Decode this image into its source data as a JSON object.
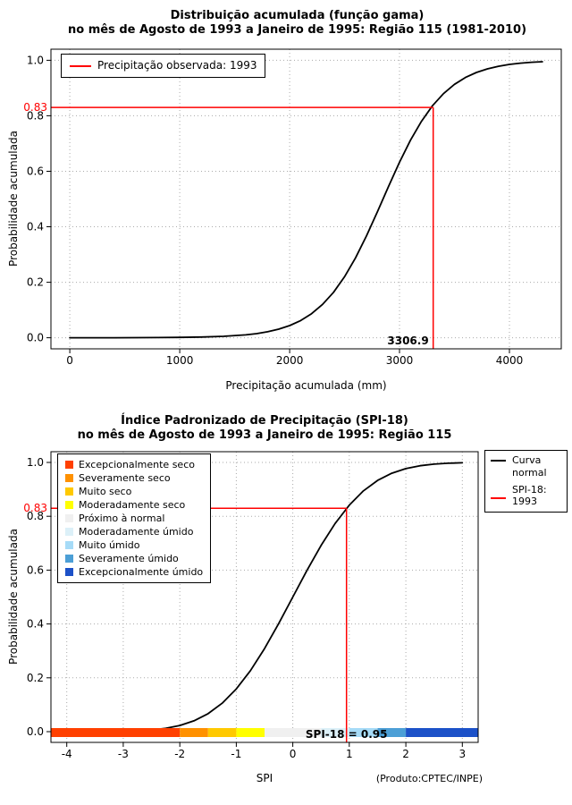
{
  "page": {
    "footer": "(Produto:CPTEC/INPE)"
  },
  "chart_data": [
    {
      "type": "line",
      "title": "Distribuição acumulada (função gama)",
      "subtitle": "no mês de Agosto de 1993 a Janeiro de 1995: Região 115 (1981-2010)",
      "xlabel": "Precipitação acumulada (mm)",
      "ylabel": "Probabilidade acumulada",
      "xlim": [
        0,
        4300
      ],
      "ylim": [
        0,
        1
      ],
      "xticks": [
        0,
        1000,
        2000,
        3000,
        4000
      ],
      "yticks": [
        "0.0",
        "0.2",
        "0.4",
        "0.6",
        "0.8",
        "1.0"
      ],
      "grid": true,
      "legend_position": "top-left",
      "legend": [
        {
          "label": "Precipitação observada: 1993",
          "color": "#FF0000",
          "sample": "line"
        }
      ],
      "series": [
        {
          "name": "Distribuição acumulada (função gama)",
          "color": "#000000",
          "points": [
            [
              0,
              0.0
            ],
            [
              200,
              0.0001
            ],
            [
              400,
              0.0001
            ],
            [
              600,
              0.0003
            ],
            [
              800,
              0.0006
            ],
            [
              1000,
              0.0012
            ],
            [
              1200,
              0.0025
            ],
            [
              1400,
              0.005
            ],
            [
              1600,
              0.0103
            ],
            [
              1700,
              0.0149
            ],
            [
              1800,
              0.0215
            ],
            [
              1900,
              0.0308
            ],
            [
              2000,
              0.0439
            ],
            [
              2100,
              0.062
            ],
            [
              2200,
              0.0868
            ],
            [
              2300,
              0.1201
            ],
            [
              2400,
              0.1639
            ],
            [
              2500,
              0.2197
            ],
            [
              2600,
              0.2879
            ],
            [
              2700,
              0.3674
            ],
            [
              2800,
              0.4549
            ],
            [
              2900,
              0.5451
            ],
            [
              3000,
              0.6326
            ],
            [
              3100,
              0.7121
            ],
            [
              3200,
              0.7803
            ],
            [
              3300,
              0.8361
            ],
            [
              3400,
              0.8799
            ],
            [
              3500,
              0.9132
            ],
            [
              3600,
              0.938
            ],
            [
              3700,
              0.9561
            ],
            [
              3800,
              0.9692
            ],
            [
              3900,
              0.9785
            ],
            [
              4000,
              0.9851
            ],
            [
              4100,
              0.9897
            ],
            [
              4200,
              0.9928
            ],
            [
              4300,
              0.995
            ]
          ]
        }
      ],
      "marker": {
        "x": 3306.9,
        "y": 0.83,
        "x_label": "3306.9",
        "y_label": "0.83",
        "color": "#FF0000"
      }
    },
    {
      "type": "line",
      "title": "Índice Padronizado de Precipitação (SPI-18)",
      "subtitle": "no mês de Agosto de 1993 a Janeiro de 1995: Região 115",
      "xlabel": "SPI",
      "ylabel": "Probabilidade acumulada",
      "xlim": [
        -4,
        3
      ],
      "ylim": [
        0,
        1
      ],
      "xticks": [
        -4,
        -3,
        -2,
        -1,
        0,
        1,
        2,
        3
      ],
      "yticks": [
        "0.0",
        "0.2",
        "0.4",
        "0.6",
        "0.8",
        "1.0"
      ],
      "grid": true,
      "legend_position": "categories top-left, lines top-right",
      "legend": [
        {
          "label": "Curva\nnormal",
          "color": "#000000",
          "sample": "line"
        },
        {
          "label": "SPI-18: 1993",
          "color": "#FF0000",
          "sample": "line"
        }
      ],
      "categories": [
        {
          "label": "Excepcionalmente seco",
          "color": "#FF4000",
          "range": [
            -4,
            -2
          ]
        },
        {
          "label": "Severamente seco",
          "color": "#FF9100",
          "range": [
            -2,
            -1.5
          ]
        },
        {
          "label": "Muito seco",
          "color": "#FFC900",
          "range": [
            -1.5,
            -1
          ]
        },
        {
          "label": "Moderadamente seco",
          "color": "#FFFF00",
          "range": [
            -1,
            -0.5
          ]
        },
        {
          "label": "Próximo à normal",
          "color": "#F0F0F0",
          "range": [
            -0.5,
            0.5
          ]
        },
        {
          "label": "Moderadamente úmido",
          "color": "#DCF0F8",
          "range": [
            0.5,
            1
          ]
        },
        {
          "label": "Muito úmido",
          "color": "#A6DBF7",
          "range": [
            1,
            1.5
          ]
        },
        {
          "label": "Severamente úmido",
          "color": "#4C9FD6",
          "range": [
            1.5,
            2
          ]
        },
        {
          "label": "Excepcionalmente úmido",
          "color": "#1C51C8",
          "range": [
            2,
            3
          ]
        }
      ],
      "series": [
        {
          "name": "Curva normal",
          "color": "#000000",
          "points": [
            [
              -4,
              3e-05
            ],
            [
              -3.75,
              0.0001
            ],
            [
              -3.5,
              0.0002
            ],
            [
              -3.25,
              0.0006
            ],
            [
              -3,
              0.0013
            ],
            [
              -2.75,
              0.003
            ],
            [
              -2.5,
              0.0062
            ],
            [
              -2.25,
              0.0122
            ],
            [
              -2,
              0.0228
            ],
            [
              -1.75,
              0.0401
            ],
            [
              -1.5,
              0.0668
            ],
            [
              -1.25,
              0.1056
            ],
            [
              -1,
              0.1587
            ],
            [
              -0.75,
              0.2266
            ],
            [
              -0.5,
              0.3085
            ],
            [
              -0.25,
              0.4013
            ],
            [
              0,
              0.5
            ],
            [
              0.25,
              0.5987
            ],
            [
              0.5,
              0.6915
            ],
            [
              0.75,
              0.7734
            ],
            [
              1,
              0.8413
            ],
            [
              1.25,
              0.8944
            ],
            [
              1.5,
              0.9332
            ],
            [
              1.75,
              0.9599
            ],
            [
              2,
              0.9772
            ],
            [
              2.25,
              0.9878
            ],
            [
              2.5,
              0.9938
            ],
            [
              2.75,
              0.997
            ],
            [
              3,
              0.9987
            ]
          ]
        }
      ],
      "marker": {
        "x": 0.95,
        "y": 0.83,
        "x_label": "SPI-18 = 0.95",
        "y_label": "0.83",
        "color": "#FF0000"
      }
    }
  ]
}
